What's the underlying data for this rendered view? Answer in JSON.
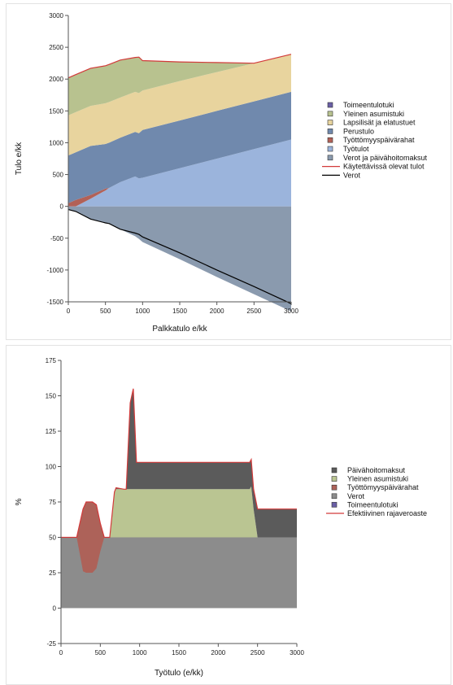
{
  "colors": {
    "toimeentulotuki": "#6a5fa6",
    "yleinen_asumistuki": "#b8c28f",
    "lapsilisat": "#e8d49e",
    "perustulo": "#7089ad",
    "tyottomyyspaivarahat": "#b26157",
    "tyotulot": "#9bb4dc",
    "verot_ja_paivahoito": "#8a9aae",
    "kaytettavissa": "#d23a3a",
    "verot_line": "#000000",
    "paivahoitomaksut": "#5b5b5b",
    "yleinen_asumistuki_2": "#bac592",
    "tyottomyyspaivarahat_2": "#ad6259",
    "verot_2": "#8c8c8c",
    "toimeentulotuki_2": "#6a5fa6",
    "efektiivinen": "#d23a3a"
  },
  "chart_data": [
    {
      "type": "area",
      "xlabel": "Palkkatulo e/kk",
      "ylabel": "Tulo e/kk",
      "xlim": [
        0,
        3000
      ],
      "ylim": [
        -1500,
        3000
      ],
      "xticks": [
        "0",
        "500",
        "1000",
        "1500",
        "2000",
        "2500",
        "3000"
      ],
      "yticks": [
        "-1500",
        "-1000",
        "-500",
        "0",
        "500",
        "1000",
        "1500",
        "2000",
        "2500",
        "3000"
      ],
      "legend_position": "right",
      "legend": [
        {
          "label": "Toimeentulotuki",
          "kind": "box",
          "color": "toimeentulotuki"
        },
        {
          "label": "Yleinen asumistuki",
          "kind": "box",
          "color": "yleinen_asumistuki"
        },
        {
          "label": "Lapsilisät ja elatustuet",
          "kind": "box",
          "color": "lapsilisat"
        },
        {
          "label": "Perustulo",
          "kind": "box",
          "color": "perustulo"
        },
        {
          "label": "Työttömyyspäivärahat",
          "kind": "box",
          "color": "tyottomyyspaivarahat"
        },
        {
          "label": "Työtulot",
          "kind": "box",
          "color": "tyotulot"
        },
        {
          "label": "Verot ja päivähoitomaksut",
          "kind": "box",
          "color": "verot_ja_paivahoito"
        },
        {
          "label": "Käytettävissä olevat tulot",
          "kind": "line",
          "color": "kaytettavissa"
        },
        {
          "label": "Verot",
          "kind": "line",
          "color": "verot_line"
        }
      ],
      "x": [
        0,
        100,
        300,
        500,
        550,
        700,
        900,
        950,
        1000,
        1500,
        2000,
        2500,
        3000
      ],
      "series": [
        {
          "name": "Työtulot",
          "color": "tyotulot",
          "lower": [
            0,
            0,
            0,
            0,
            0,
            0,
            0,
            0,
            0,
            0,
            0,
            0,
            0
          ],
          "upper": [
            0,
            0,
            120,
            250,
            290,
            380,
            470,
            440,
            450,
            600,
            750,
            900,
            1050
          ]
        },
        {
          "name": "Työttömyyspäivärahat",
          "color": "tyottomyyspaivarahat",
          "lower": [
            0,
            0,
            120,
            250,
            290,
            380,
            470,
            440,
            450,
            600,
            750,
            900,
            1050
          ],
          "upper": [
            50,
            100,
            180,
            280,
            290,
            380,
            470,
            440,
            450,
            600,
            750,
            900,
            1050
          ]
        },
        {
          "name": "Perustulo",
          "color": "perustulo",
          "lower": [
            50,
            100,
            180,
            280,
            290,
            380,
            470,
            440,
            450,
            600,
            750,
            900,
            1050
          ],
          "upper": [
            800,
            850,
            950,
            980,
            1000,
            1080,
            1170,
            1150,
            1200,
            1350,
            1500,
            1650,
            1800
          ]
        },
        {
          "name": "Lapsilisät ja elatustuet",
          "color": "lapsilisat",
          "lower": [
            800,
            850,
            950,
            980,
            1000,
            1080,
            1170,
            1150,
            1200,
            1350,
            1500,
            1650,
            1800
          ],
          "upper": [
            1430,
            1480,
            1580,
            1620,
            1640,
            1710,
            1800,
            1780,
            1820,
            1970,
            2110,
            2250,
            2390
          ]
        },
        {
          "name": "Yleinen asumistuki",
          "color": "yleinen_asumistuki",
          "lower": [
            1430,
            1480,
            1580,
            1620,
            1640,
            1710,
            1800,
            1780,
            1820,
            1970,
            2110,
            2250,
            2390
          ],
          "upper": [
            2020,
            2070,
            2170,
            2210,
            2230,
            2300,
            2340,
            2345,
            2290,
            2270,
            2260,
            2250,
            2390
          ]
        },
        {
          "name": "Verot ja päivähoitomaksut",
          "color": "verot_ja_paivahoito",
          "lower": [
            -50,
            -80,
            -200,
            -260,
            -270,
            -360,
            -470,
            -510,
            -560,
            -830,
            -1110,
            -1380,
            -1650
          ],
          "upper": [
            0,
            0,
            0,
            0,
            0,
            0,
            0,
            0,
            0,
            0,
            0,
            0,
            0
          ]
        }
      ],
      "lines": [
        {
          "name": "Käytettävissä olevat tulot",
          "color": "kaytettavissa",
          "y": [
            2020,
            2070,
            2170,
            2210,
            2230,
            2300,
            2340,
            2345,
            2290,
            2270,
            2260,
            2250,
            2390
          ]
        },
        {
          "name": "Verot",
          "color": "verot_line",
          "y": [
            -50,
            -80,
            -200,
            -260,
            -270,
            -360,
            -420,
            -440,
            -480,
            -730,
            -1000,
            -1260,
            -1530
          ]
        }
      ]
    },
    {
      "type": "area",
      "xlabel": "Työtulo (e/kk)",
      "ylabel": "%",
      "xlim": [
        0,
        3000
      ],
      "ylim": [
        -25,
        175
      ],
      "xticks": [
        "0",
        "500",
        "1000",
        "1500",
        "2000",
        "2500",
        "3000"
      ],
      "yticks": [
        "-25",
        "0",
        "25",
        "50",
        "75",
        "100",
        "125",
        "150",
        "175"
      ],
      "legend_position": "right",
      "legend": [
        {
          "label": "Päivähoitomaksut",
          "kind": "box",
          "color": "paivahoitomaksut"
        },
        {
          "label": "Yleinen asumistuki",
          "kind": "box",
          "color": "yleinen_asumistuki_2"
        },
        {
          "label": "Työttömyyspäivärahat",
          "kind": "box",
          "color": "tyottomyyspaivarahat_2"
        },
        {
          "label": "Verot",
          "kind": "box",
          "color": "verot_2"
        },
        {
          "label": "Toimeentulotuki",
          "kind": "box",
          "color": "toimeentulotuki_2"
        },
        {
          "label": "Efektiivinen rajaveroaste",
          "kind": "line",
          "color": "efektiivinen"
        }
      ],
      "x": [
        0,
        200,
        280,
        320,
        400,
        450,
        500,
        550,
        580,
        620,
        680,
        700,
        800,
        830,
        880,
        920,
        960,
        1000,
        2350,
        2400,
        2420,
        2450,
        2500,
        3000
      ],
      "series": [
        {
          "name": "Verot",
          "color": "verot_2",
          "lower": [
            0,
            0,
            0,
            0,
            0,
            0,
            0,
            0,
            0,
            0,
            0,
            0,
            0,
            0,
            0,
            0,
            0,
            0,
            0,
            0,
            0,
            0,
            0,
            0
          ],
          "upper": [
            50,
            50,
            50,
            50,
            50,
            50,
            50,
            50,
            50,
            50,
            50,
            50,
            50,
            50,
            50,
            50,
            50,
            50,
            50,
            50,
            50,
            50,
            50,
            50
          ]
        },
        {
          "name": "Työttömyyspäivärahat",
          "color": "tyottomyyspaivarahat_2",
          "lower": [
            50,
            50,
            26,
            25,
            25,
            28,
            40,
            50,
            50,
            50,
            50,
            50,
            50,
            50,
            50,
            50,
            50,
            50,
            50,
            50,
            50,
            50,
            50,
            50
          ],
          "upper": [
            50,
            50,
            70,
            75,
            75,
            73,
            60,
            50,
            50,
            50,
            50,
            50,
            50,
            50,
            50,
            50,
            50,
            50,
            50,
            50,
            50,
            50,
            50,
            50
          ]
        },
        {
          "name": "Yleinen asumistuki",
          "color": "yleinen_asumistuki_2",
          "lower": [
            50,
            50,
            50,
            50,
            50,
            50,
            50,
            50,
            50,
            50,
            50,
            50,
            50,
            50,
            50,
            50,
            50,
            50,
            50,
            50,
            50,
            50,
            50,
            50
          ],
          "upper": [
            50,
            50,
            50,
            50,
            50,
            50,
            50,
            50,
            50,
            50,
            82,
            84,
            84,
            84,
            84,
            84,
            84,
            84,
            84,
            84,
            86,
            70,
            50,
            50
          ]
        },
        {
          "name": "Päivähoitomaksut",
          "color": "paivahoitomaksut",
          "lower": [
            50,
            50,
            50,
            50,
            50,
            50,
            50,
            50,
            50,
            50,
            82,
            84,
            84,
            84,
            84,
            84,
            84,
            84,
            84,
            84,
            86,
            70,
            50,
            50
          ],
          "upper": [
            50,
            50,
            50,
            50,
            50,
            50,
            50,
            50,
            50,
            50,
            82,
            85,
            84,
            84,
            145,
            155,
            103,
            103,
            103,
            103,
            105,
            84,
            70,
            70
          ]
        }
      ],
      "lines": [
        {
          "name": "Efektiivinen rajaveroaste",
          "color": "efektiivinen",
          "y": [
            50,
            50,
            70,
            75,
            75,
            73,
            60,
            50,
            50,
            50,
            82,
            85,
            84,
            84,
            145,
            155,
            103,
            103,
            103,
            103,
            105,
            84,
            70,
            70
          ]
        }
      ]
    }
  ]
}
